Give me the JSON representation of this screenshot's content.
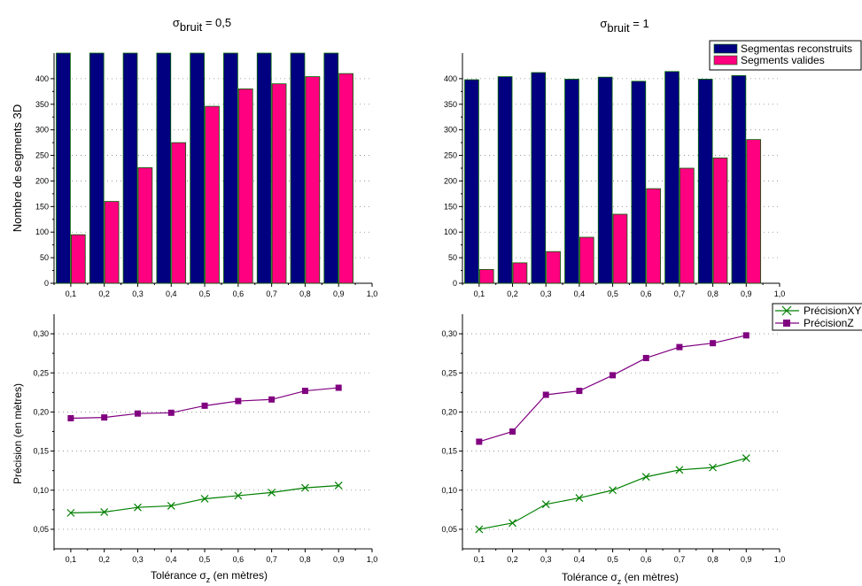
{
  "titles": {
    "left": {
      "sigma": "σ",
      "sub": "bruit",
      "rest": " = 0,5"
    },
    "right": {
      "sigma": "σ",
      "sub": "bruit",
      "rest": " = 1"
    }
  },
  "ylabels": {
    "top": "Nombre de segments 3D",
    "bottom": "Précision (en mètres)"
  },
  "xlabels": {
    "pre": "Tolérance σ",
    "sub": "z",
    "post": " (en mètres)"
  },
  "colors": {
    "reconstructed": "#000080",
    "valid": "#ff0080",
    "precision_xy": "#008000",
    "precision_z": "#800080",
    "bar_edge": "#006400",
    "grid": "#888888"
  },
  "chart_data": [
    {
      "id": "top-left",
      "type": "bar",
      "categories": [
        "0,1",
        "0,2",
        "0,3",
        "0,4",
        "0,5",
        "0,6",
        "0,7",
        "0,8",
        "0,9"
      ],
      "x": [
        0.1,
        0.2,
        0.3,
        0.4,
        0.5,
        0.6,
        0.7,
        0.8,
        0.9
      ],
      "series": [
        {
          "key": "reconstructed",
          "values": [
            450,
            450,
            450,
            450,
            450,
            450,
            450,
            450,
            450
          ]
        },
        {
          "key": "valid",
          "values": [
            95,
            160,
            226,
            275,
            346,
            380,
            390,
            404,
            410
          ]
        }
      ],
      "xlim": [
        0.05,
        1.0
      ],
      "ylim": [
        0,
        450
      ],
      "yticks": [
        0,
        50,
        100,
        150,
        200,
        250,
        300,
        350,
        400
      ],
      "ytick_labels": [
        "0",
        "50",
        "100",
        "150",
        "200",
        "250",
        "300",
        "350",
        "400"
      ],
      "xtick_labels": [
        "0,1",
        "0,2",
        "0,3",
        "0,4",
        "0,5",
        "0,6",
        "0,7",
        "0,8",
        "0,9",
        "1,0"
      ],
      "grid": true
    },
    {
      "id": "top-right",
      "type": "bar",
      "categories": [
        "0,1",
        "0,2",
        "0,3",
        "0,4",
        "0,5",
        "0,6",
        "0,7",
        "0,8",
        "0,9"
      ],
      "x": [
        0.1,
        0.2,
        0.3,
        0.4,
        0.5,
        0.6,
        0.7,
        0.8,
        0.9
      ],
      "series": [
        {
          "key": "reconstructed",
          "name": "Segmentas reconstruits",
          "values": [
            398,
            404,
            412,
            399,
            403,
            395,
            414,
            399,
            406
          ]
        },
        {
          "key": "valid",
          "name": "Segments valides",
          "values": [
            27,
            40,
            62,
            90,
            135,
            185,
            225,
            245,
            281
          ]
        }
      ],
      "xlim": [
        0.05,
        1.0
      ],
      "ylim": [
        0,
        450
      ],
      "yticks": [
        0,
        50,
        100,
        150,
        200,
        250,
        300,
        350,
        400
      ],
      "ytick_labels": [
        "0",
        "50",
        "100",
        "150",
        "200",
        "250",
        "300",
        "350",
        "400"
      ],
      "xtick_labels": [
        "0,1",
        "0,2",
        "0,3",
        "0,4",
        "0,5",
        "0,6",
        "0,7",
        "0,8",
        "0,9",
        "1,0"
      ],
      "legend": "top-right",
      "grid": true
    },
    {
      "id": "bottom-left",
      "type": "line",
      "x": [
        0.1,
        0.2,
        0.3,
        0.4,
        0.5,
        0.6,
        0.7,
        0.8,
        0.9
      ],
      "series": [
        {
          "key": "precision_xy",
          "values": [
            0.071,
            0.072,
            0.078,
            0.08,
            0.089,
            0.093,
            0.097,
            0.103,
            0.106
          ]
        },
        {
          "key": "precision_z",
          "values": [
            0.192,
            0.193,
            0.198,
            0.199,
            0.208,
            0.214,
            0.216,
            0.227,
            0.231
          ]
        }
      ],
      "xlim": [
        0.05,
        1.0
      ],
      "ylim": [
        0.025,
        0.325
      ],
      "yticks": [
        0.05,
        0.1,
        0.15,
        0.2,
        0.25,
        0.3
      ],
      "ytick_labels": [
        "0,05",
        "0,10",
        "0,15",
        "0,20",
        "0,25",
        "0,30"
      ],
      "xtick_labels": [
        "0,1",
        "0,2",
        "0,3",
        "0,4",
        "0,5",
        "0,6",
        "0,7",
        "0,8",
        "0,9",
        "1,0"
      ],
      "grid": true
    },
    {
      "id": "bottom-right",
      "type": "line",
      "x": [
        0.1,
        0.2,
        0.3,
        0.4,
        0.5,
        0.6,
        0.7,
        0.8,
        0.9
      ],
      "series": [
        {
          "key": "precision_xy",
          "name": "PrécisionXY",
          "values": [
            0.05,
            0.058,
            0.082,
            0.09,
            0.1,
            0.117,
            0.126,
            0.129,
            0.141
          ]
        },
        {
          "key": "precision_z",
          "name": "PrécisionZ",
          "values": [
            0.162,
            0.175,
            0.222,
            0.227,
            0.247,
            0.269,
            0.283,
            0.288,
            0.298
          ]
        }
      ],
      "xlim": [
        0.05,
        1.0
      ],
      "ylim": [
        0.025,
        0.325
      ],
      "yticks": [
        0.05,
        0.1,
        0.15,
        0.2,
        0.25,
        0.3
      ],
      "ytick_labels": [
        "0,05",
        "0,10",
        "0,15",
        "0,20",
        "0,25",
        "0,30"
      ],
      "xtick_labels": [
        "0,1",
        "0,2",
        "0,3",
        "0,4",
        "0,5",
        "0,6",
        "0,7",
        "0,8",
        "0,9",
        "1,0"
      ],
      "legend": "top-right",
      "grid": true
    }
  ]
}
